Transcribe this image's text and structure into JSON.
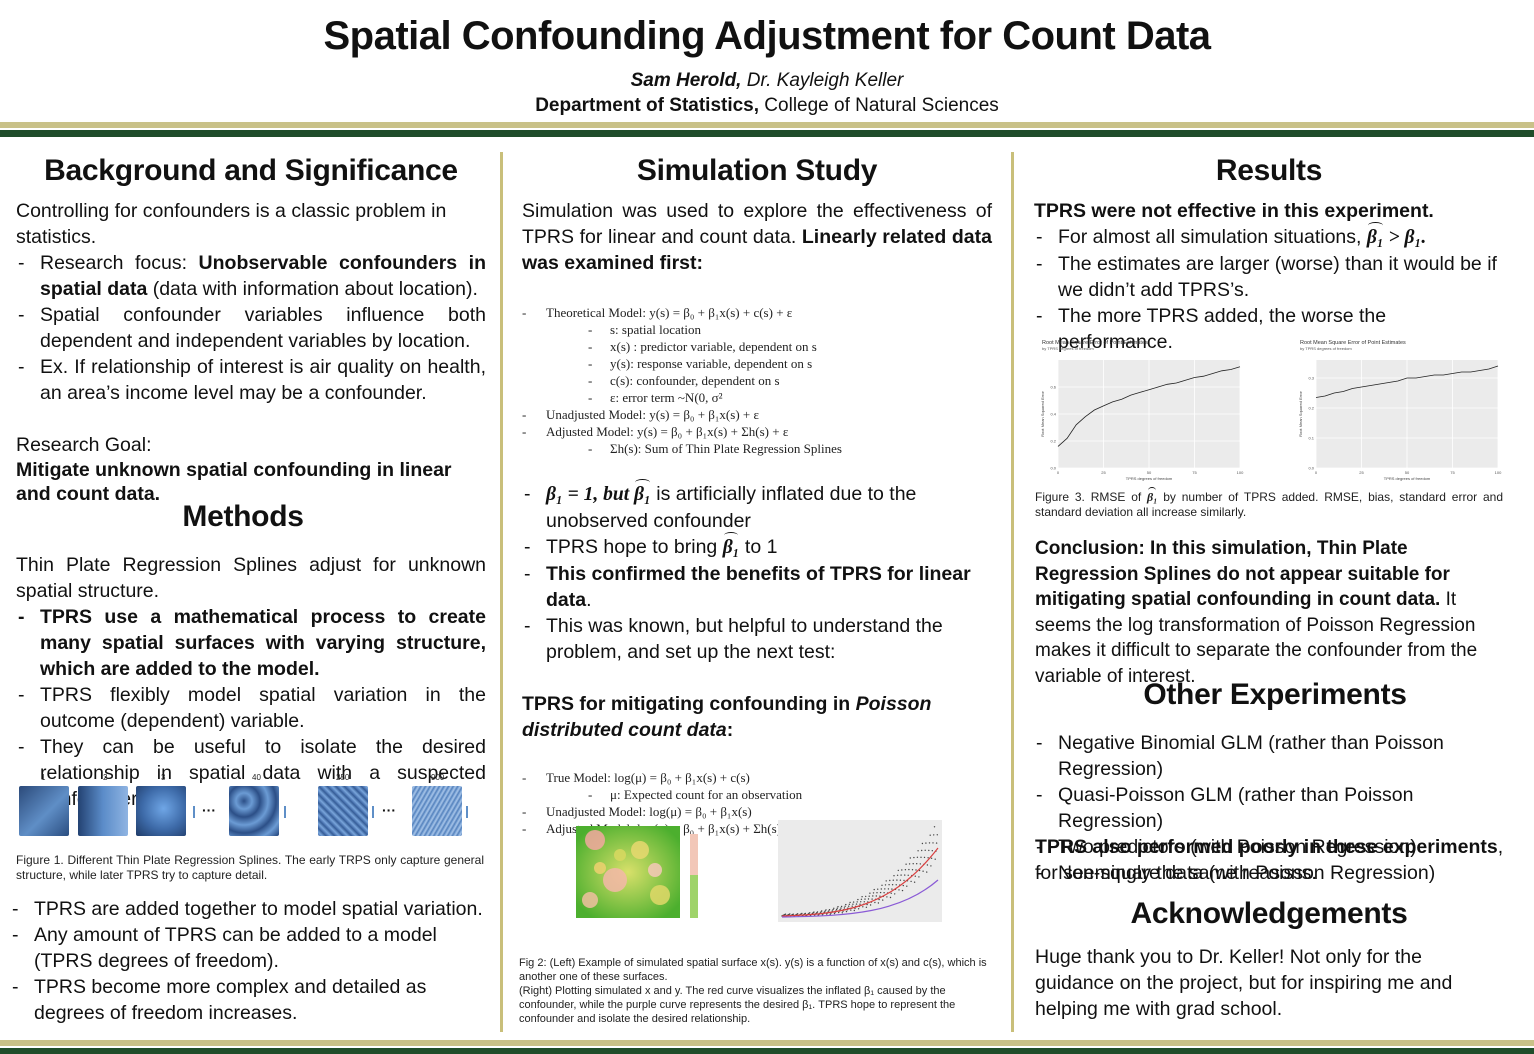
{
  "header": {
    "title": "Spatial Confounding Adjustment for Count Data",
    "author_primary": "Sam Herold,",
    "author_secondary": " Dr. Kayleigh Keller",
    "dept_bold": "Department of Statistics,",
    "dept_rest": " College of Natural Sciences"
  },
  "colors": {
    "gold": "#c9c188",
    "green": "#1f4d2a",
    "divider": "#c9bf7a"
  },
  "background": {
    "title": "Background and Significance",
    "intro": "Controlling for confounders is a classic problem in statistics.",
    "b1_pre": "Research focus: ",
    "b1_bold": "Unobservable confounders in spatial data",
    "b1_post": " (data with information about location).",
    "b2": "Spatial confounder variables influence both dependent and independent variables by location.",
    "b3": "Ex. If relationship of interest is air quality on health, an area’s income level may be a confounder.",
    "goal_label": "Research Goal:",
    "goal_text": "Mitigate unknown spatial confounding in linear and count data."
  },
  "methods": {
    "title": "Methods",
    "intro": "Thin Plate Regression Splines adjust for unknown spatial structure.",
    "b1": "TPRS use a mathematical process to create many spatial surfaces with varying structure, which are added to the model.",
    "b2": "TPRS flexibly model spatial variation in the outcome (dependent) variable.",
    "b3": "They can be useful to isolate the desired relationship in spatial data with a suspected confounder.",
    "spline_labels": [
      "1",
      "2",
      "3",
      "40",
      "250",
      "900"
    ],
    "ellipsis": "···",
    "fig1_caption": "Figure 1. Different Thin Plate Regression Splines. The early TRPS only capture general structure, while later TPRS try to capture detail.",
    "b4": "TPRS are added together to model spatial variation.",
    "b5": "Any amount of TPRS can be added to a model (TPRS degrees of freedom).",
    "b6": "TPRS become more complex and detailed as degrees of freedom increases."
  },
  "simulation": {
    "title": "Simulation Study",
    "intro_pre": "Simulation was used to explore the effectiveness of TPRS for linear and count data. ",
    "intro_bold": "Linearly related data was examined first:",
    "lin_model": [
      {
        "lvl": 1,
        "text": "Theoretical Model:  y(s) =  β₀ + β₁x(s) + c(s) + ε"
      },
      {
        "lvl": 2,
        "text": "s: spatial location"
      },
      {
        "lvl": 2,
        "text": "x(s) :  predictor variable, dependent on s"
      },
      {
        "lvl": 2,
        "text": "y(s): response variable, dependent on s"
      },
      {
        "lvl": 2,
        "text": "c(s): confounder, dependent on s"
      },
      {
        "lvl": 2,
        "text": "ε: error term ~N(0, σ²"
      },
      {
        "lvl": 1,
        "text": "Unadjusted Model:  y(s) =  β₀ + β₁x(s) +  ε"
      },
      {
        "lvl": 1,
        "text": "Adjusted Model:  y(s) =  β₀ + β₁x(s) + Σh(s)  + ε"
      },
      {
        "lvl": 2,
        "text": "Σh(s): Sum of Thin Plate Regression Splines"
      }
    ],
    "b1_math": "β₁ = 1, but ",
    "b1_hat": "β₁",
    "b1_text": " is artificially inflated due to the unobserved confounder",
    "b2_pre": "TPRS hope to bring ",
    "b2_hat": "β₁",
    "b2_post": " to 1",
    "b3": "This confirmed the benefits of TPRS for linear data",
    "b3_dot": ".",
    "b4": "This was known, but helpful to understand the problem, and set up the next test:",
    "poisson_head_pre": "TPRS for mitigating confounding in ",
    "poisson_head_it": "Poisson distributed count data",
    "poisson_head_post": ":",
    "count_model": [
      {
        "lvl": 1,
        "text": "True Model: log(μ) =  β₀ + β₁x(s) + c(s)"
      },
      {
        "lvl": 2,
        "text": "μ: Expected count for an observation"
      },
      {
        "lvl": 1,
        "text": "Unadjusted Model: log(μ) =  β₀ + β₁x(s)"
      },
      {
        "lvl": 1,
        "text": "Adjusted Model: log(μ) =  β₀ + β₁x(s) + Σh(s)"
      }
    ],
    "fig2_caption_1": "Fig 2: (Left) Example of simulated spatial surface x(s). y(s) is a function of x(s) and c(s), which is another one of these surfaces.",
    "fig2_caption_2": "(Right) Plotting simulated x and y. The red curve visualizes the inflated β₁ caused by the confounder, while the purple curve represents the desired β₁. TPRS hope to represent the confounder and isolate the desired relationship."
  },
  "results": {
    "title": "Results",
    "lead": "TPRS were not effective in this experiment.",
    "b1_pre": "For almost all simulation situations, ",
    "b1_hat": "β₁",
    "b1_post": " > β₁.",
    "b2": "The estimates are larger (worse) than it would be if we didn’t add TPRS’s.",
    "b3": "The more TPRS added, the worse the performance.",
    "fig3_caption_pre": "Figure 3. RMSE of ",
    "fig3_caption_hat": "β₁",
    "fig3_caption_post": " by number of TPRS added. RMSE, bias, standard error and standard deviation all increase similarly.",
    "conclusion_bold": "Conclusion: In this simulation, Thin Plate Regression Splines do not appear suitable for mitigating spatial confounding in count data.",
    "conclusion_rest": " It seems the log transformation of Poisson Regression makes it difficult to separate the confounder from the variable of interest."
  },
  "other": {
    "title": "Other Experiments",
    "items": [
      "Negative Binomial GLM (rather than Poisson Regression)",
      "Quasi-Poisson GLM (rather than Poisson Regression)",
      "Two predictors (with Poisson Regression)",
      "Non-square data (with Poisson Regression)"
    ],
    "close_bold": "TPRS also performed poorly in these experiments",
    "close_rest": ", for seemingly the same reasons."
  },
  "ack": {
    "title": "Acknowledgements",
    "text": "Huge thank you to Dr. Keller! Not only for the guidance on the project, but for inspiring me and helping me with grad school."
  },
  "chart_data": [
    {
      "type": "line",
      "title": "Root Mean Square Error of Point Estimates",
      "subtitle": "by TPRS degrees of freedom",
      "xlabel": "TPRS degrees of freedom",
      "ylabel": "Root Mean Squared Error",
      "x": [
        0,
        5,
        10,
        15,
        20,
        25,
        30,
        35,
        40,
        45,
        50,
        55,
        60,
        65,
        70,
        75,
        80,
        85,
        90,
        95,
        100
      ],
      "values": [
        0.16,
        0.22,
        0.32,
        0.38,
        0.43,
        0.46,
        0.49,
        0.51,
        0.54,
        0.56,
        0.58,
        0.6,
        0.62,
        0.63,
        0.65,
        0.67,
        0.68,
        0.7,
        0.72,
        0.73,
        0.75
      ],
      "xticks": [
        "0",
        "25",
        "50",
        "75",
        "100"
      ],
      "yticks": [
        "0.0",
        "0.2",
        "0.4",
        "0.6"
      ],
      "xlim": [
        0,
        100
      ],
      "ylim": [
        0,
        0.8
      ],
      "grid": true
    },
    {
      "type": "line",
      "title": "Root Mean Square Error of Point Estimates",
      "subtitle": "by TPRS degrees of freedom",
      "xlabel": "TPRS degrees of freedom",
      "ylabel": "Root Mean Squared Error",
      "x": [
        0,
        5,
        10,
        15,
        20,
        25,
        30,
        35,
        40,
        45,
        50,
        55,
        60,
        65,
        70,
        75,
        80,
        85,
        90,
        95,
        100
      ],
      "values": [
        0.235,
        0.24,
        0.25,
        0.255,
        0.265,
        0.27,
        0.275,
        0.28,
        0.285,
        0.29,
        0.3,
        0.3,
        0.305,
        0.31,
        0.31,
        0.315,
        0.32,
        0.32,
        0.325,
        0.33,
        0.34
      ],
      "xticks": [
        "0",
        "25",
        "50",
        "75",
        "100"
      ],
      "yticks": [
        "0.0",
        "0.1",
        "0.2",
        "0.3"
      ],
      "xlim": [
        0,
        100
      ],
      "ylim": [
        0,
        0.36
      ],
      "grid": true
    }
  ]
}
